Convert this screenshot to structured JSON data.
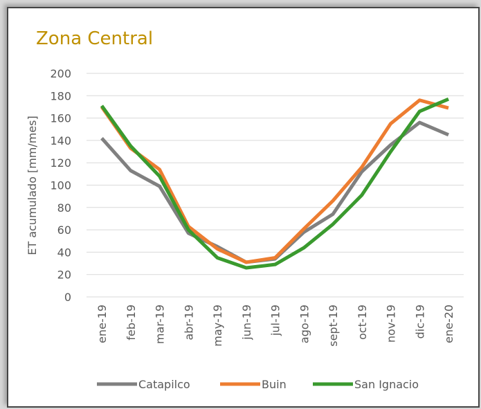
{
  "chart_data": {
    "type": "line",
    "title": "Zona Central",
    "y_label": "ET acumulado [mm/mes]",
    "categories": [
      "ene-19",
      "feb-19",
      "mar-19",
      "abr-19",
      "may-19",
      "jun-19",
      "jul-19",
      "ago-19",
      "sept-19",
      "oct-19",
      "nov-19",
      "dic-19",
      "ene-20"
    ],
    "series": [
      {
        "name": "Catapilco",
        "color": "#808080",
        "values": [
          142,
          113,
          99,
          57,
          45,
          31,
          34,
          58,
          74,
          112,
          136,
          156,
          145
        ]
      },
      {
        "name": "Buin",
        "color": "#ed7d31",
        "values": [
          170,
          133,
          114,
          63,
          43,
          31,
          35,
          61,
          86,
          116,
          155,
          176,
          169
        ]
      },
      {
        "name": "San Ignacio",
        "color": "#3a9a2e",
        "values": [
          171,
          135,
          108,
          60,
          35,
          26,
          29,
          44,
          65,
          91,
          130,
          166,
          177
        ]
      }
    ],
    "ylim": [
      0,
      200
    ],
    "yticks": [
      0,
      20,
      40,
      60,
      80,
      100,
      120,
      140,
      160,
      180,
      200
    ],
    "grid": true,
    "legend": "bottom"
  }
}
